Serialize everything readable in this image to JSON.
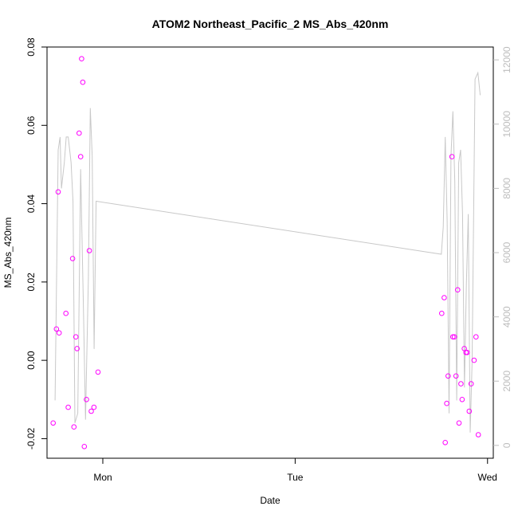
{
  "chart_data": {
    "type": "scatter",
    "title": "ATOM2 Northeast_Pacific_2 MS_Abs_420nm",
    "xlabel": "Date",
    "ylabel": "MS_Abs_420nm",
    "x_ticks": [
      "Mon",
      "Tue",
      "Wed"
    ],
    "xlim": [
      -0.29,
      2.03
    ],
    "ylim": [
      -0.025,
      0.08
    ],
    "y_ticks": [
      "-0.02",
      "0.00",
      "0.02",
      "0.04",
      "0.06",
      "0.08"
    ],
    "y2lim": [
      -400,
      12400
    ],
    "y2_ticks": [
      "0",
      "2000",
      "4000",
      "6000",
      "8000",
      "10000",
      "12000"
    ],
    "colors": {
      "points": "#ff00ff",
      "line": "#c8c8c8",
      "right_axis": "#bdbdbd",
      "frame": "#000000"
    },
    "series": [
      {
        "values": [
          [
            -0.258,
            -0.016
          ],
          [
            -0.241,
            0.008
          ],
          [
            -0.232,
            0.043
          ],
          [
            -0.227,
            0.007
          ],
          [
            -0.192,
            0.012
          ],
          [
            -0.18,
            -0.012
          ],
          [
            -0.157,
            0.026
          ],
          [
            -0.15,
            -0.017
          ],
          [
            -0.14,
            0.006
          ],
          [
            -0.134,
            0.003
          ],
          [
            -0.123,
            0.058
          ],
          [
            -0.115,
            0.052
          ],
          [
            -0.11,
            0.077
          ],
          [
            -0.104,
            0.071
          ],
          [
            -0.096,
            -0.022
          ],
          [
            -0.085,
            -0.01
          ],
          [
            -0.07,
            0.028
          ],
          [
            -0.06,
            -0.013
          ],
          [
            -0.046,
            -0.012
          ],
          [
            -0.025,
            -0.003
          ],
          [
            1.762,
            0.012
          ],
          [
            1.775,
            0.016
          ],
          [
            1.78,
            -0.021
          ],
          [
            1.788,
            -0.011
          ],
          [
            1.795,
            -0.004
          ],
          [
            1.815,
            0.052
          ],
          [
            1.82,
            0.006
          ],
          [
            1.828,
            0.006
          ],
          [
            1.836,
            -0.004
          ],
          [
            1.845,
            0.018
          ],
          [
            1.852,
            -0.016
          ],
          [
            1.862,
            -0.006
          ],
          [
            1.868,
            -0.01
          ],
          [
            1.879,
            0.003
          ],
          [
            1.888,
            0.002
          ],
          [
            1.894,
            0.002
          ],
          [
            1.905,
            -0.013
          ],
          [
            1.915,
            -0.006
          ],
          [
            1.93,
            0.0
          ],
          [
            1.94,
            0.006
          ],
          [
            1.952,
            -0.019
          ]
        ]
      },
      {
        "axis": "right",
        "values": [
          [
            -0.248,
            1400
          ],
          [
            -0.232,
            9200
          ],
          [
            -0.222,
            9600
          ],
          [
            -0.215,
            8000
          ],
          [
            -0.2,
            8800
          ],
          [
            -0.19,
            9600
          ],
          [
            -0.18,
            9600
          ],
          [
            -0.165,
            8800
          ],
          [
            -0.155,
            7600
          ],
          [
            -0.145,
            700
          ],
          [
            -0.13,
            1000
          ],
          [
            -0.115,
            8600
          ],
          [
            -0.1,
            4000
          ],
          [
            -0.09,
            800
          ],
          [
            -0.075,
            5200
          ],
          [
            -0.065,
            10500
          ],
          [
            -0.055,
            9000
          ],
          [
            -0.045,
            3000
          ],
          [
            -0.035,
            7600
          ],
          [
            1.76,
            5950
          ],
          [
            1.77,
            6800
          ],
          [
            1.78,
            9600
          ],
          [
            1.79,
            7000
          ],
          [
            1.8,
            1000
          ],
          [
            1.81,
            9000
          ],
          [
            1.82,
            10400
          ],
          [
            1.83,
            8200
          ],
          [
            1.84,
            1400
          ],
          [
            1.85,
            8800
          ],
          [
            1.86,
            9200
          ],
          [
            1.87,
            7200
          ],
          [
            1.88,
            1800
          ],
          [
            1.89,
            5000
          ],
          [
            1.9,
            7200
          ],
          [
            1.91,
            400
          ],
          [
            1.92,
            2600
          ],
          [
            1.935,
            11400
          ],
          [
            1.95,
            11600
          ],
          [
            1.962,
            10900
          ]
        ]
      }
    ],
    "grid": false
  }
}
